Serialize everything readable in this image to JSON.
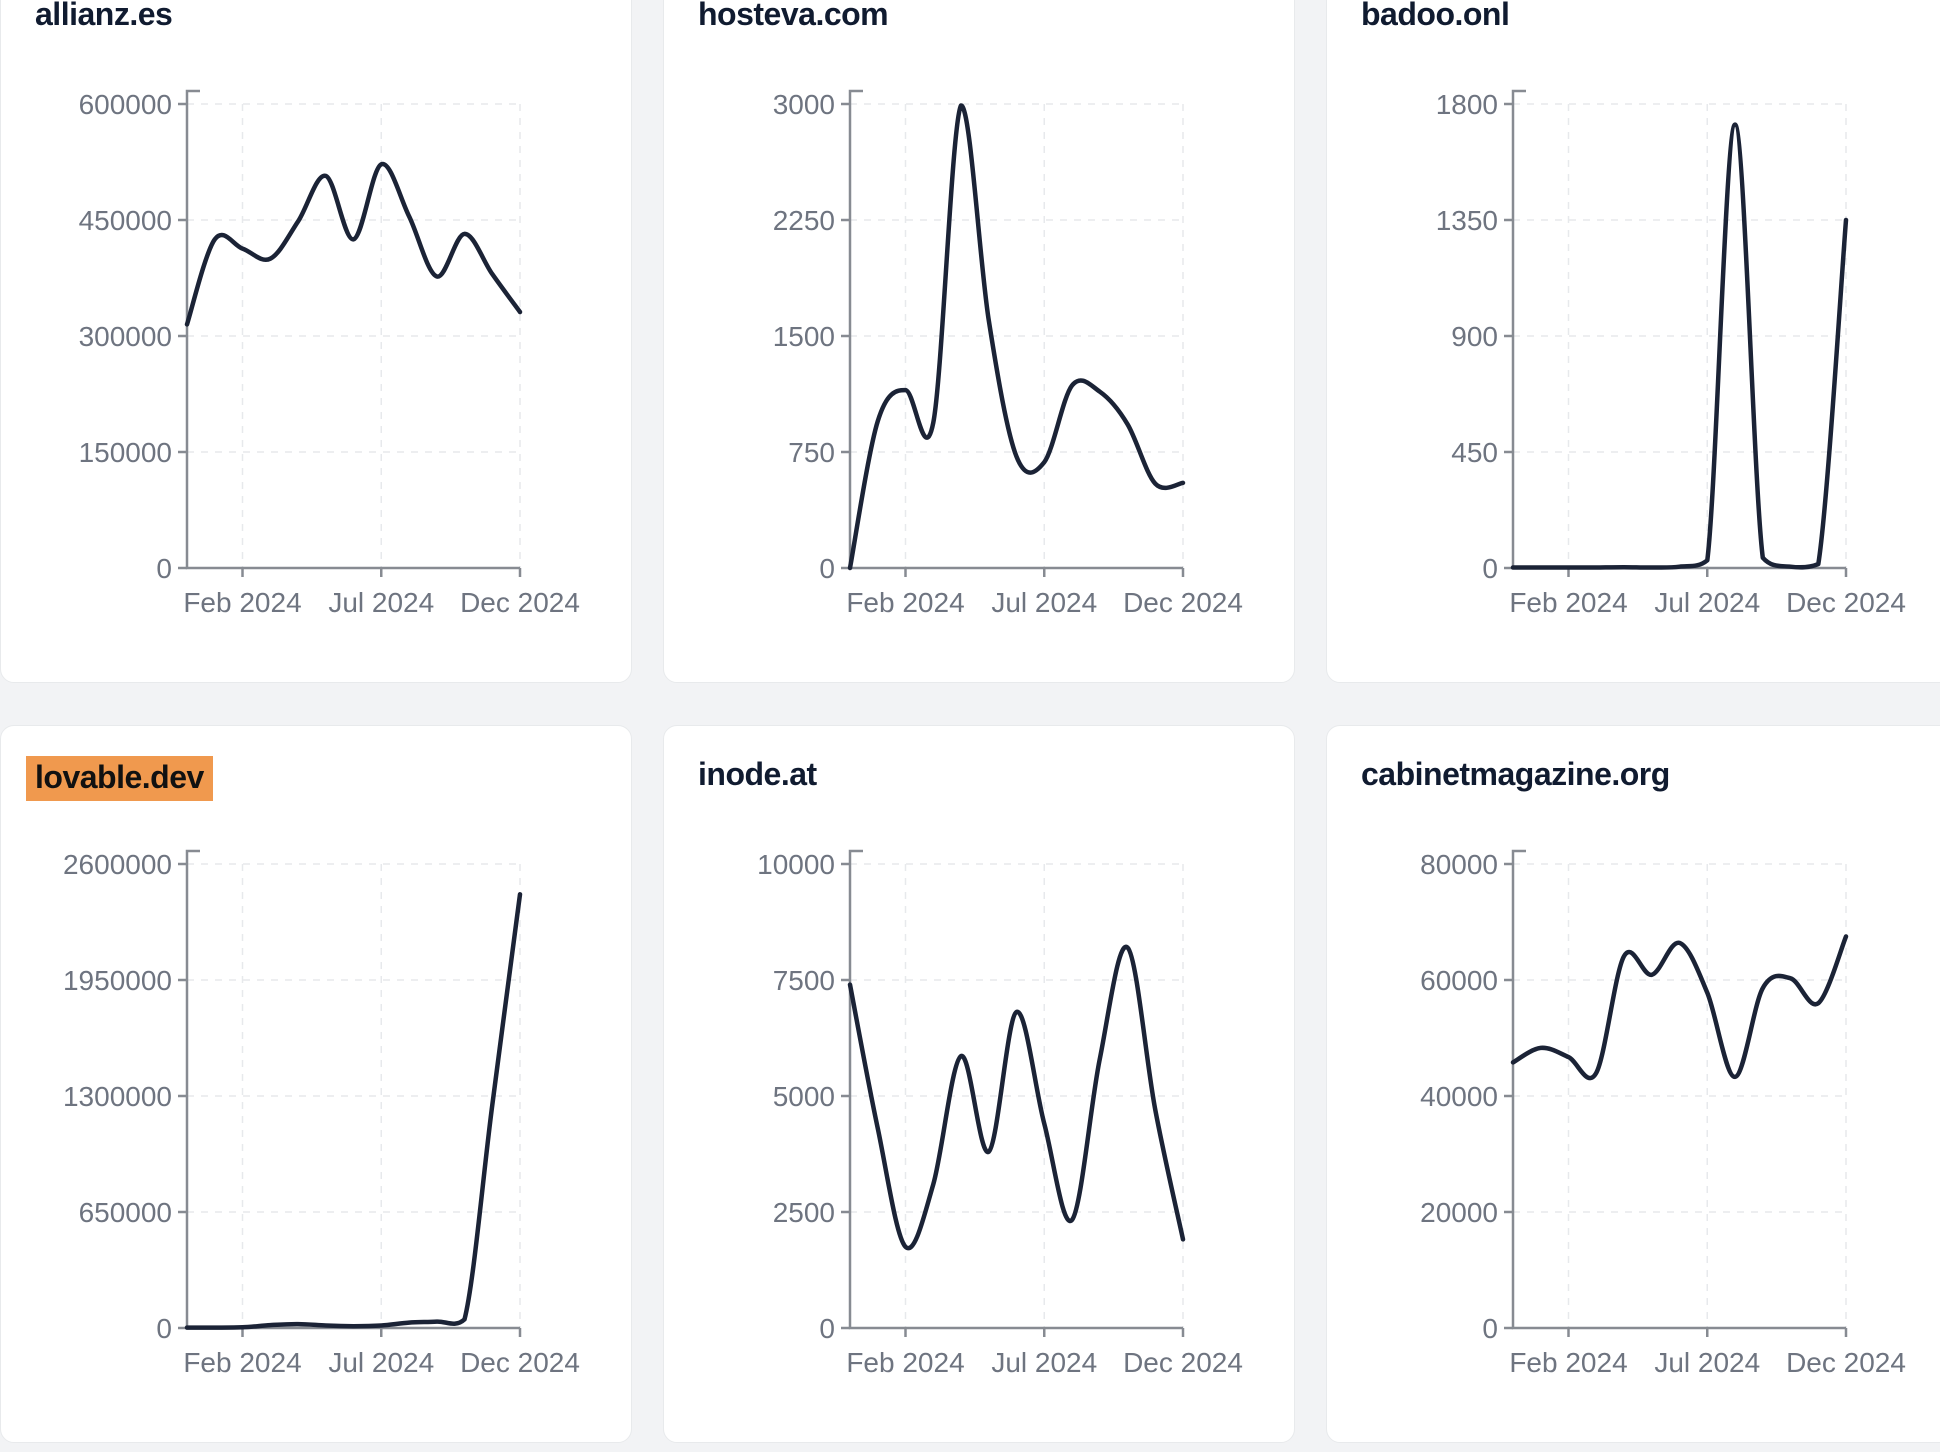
{
  "page": {
    "background": "#f2f3f5",
    "card_background": "#ffffff",
    "card_border": "#e8eaec"
  },
  "style": {
    "line_color": "#1b2336",
    "title_color": "#101b30",
    "tick_label_color": "#6e7480",
    "axis_color": "#878b92",
    "grid_color": "#e7e9ec",
    "highlight_color": "#f0994e",
    "highlight_text_color": "#111111"
  },
  "x_tick_labels": [
    "Feb 2024",
    "Jul 2024",
    "Dec 2024"
  ],
  "chart_data": [
    {
      "type": "line",
      "title": "allianz.es",
      "highlighted": false,
      "x": [
        "Dec 2023",
        "Jan 2024",
        "Feb 2024",
        "Mar 2024",
        "Apr 2024",
        "May 2024",
        "Jun 2024",
        "Jul 2024",
        "Aug 2024",
        "Sep 2024",
        "Oct 2024",
        "Nov 2024",
        "Dec 2024"
      ],
      "values": [
        315000,
        425000,
        413000,
        400000,
        448000,
        507000,
        425000,
        522000,
        455000,
        377000,
        432000,
        380000,
        331000
      ],
      "ylim": [
        0,
        600000
      ],
      "y_ticks": [
        0,
        150000,
        300000,
        450000,
        600000
      ],
      "x_tick_labels": [
        "Feb 2024",
        "Jul 2024",
        "Dec 2024"
      ],
      "grid": true,
      "legend": "none"
    },
    {
      "type": "line",
      "title": "hosteva.com",
      "highlighted": false,
      "x": [
        "Dec 2023",
        "Jan 2024",
        "Feb 2024",
        "Mar 2024",
        "Apr 2024",
        "May 2024",
        "Jun 2024",
        "Jul 2024",
        "Aug 2024",
        "Sep 2024",
        "Oct 2024",
        "Nov 2024",
        "Dec 2024"
      ],
      "values": [
        0,
        950,
        1150,
        940,
        2990,
        1600,
        720,
        685,
        1180,
        1140,
        930,
        545,
        550
      ],
      "ylim": [
        0,
        3000
      ],
      "y_ticks": [
        0,
        750,
        1500,
        2250,
        3000
      ],
      "x_tick_labels": [
        "Feb 2024",
        "Jul 2024",
        "Dec 2024"
      ],
      "grid": true,
      "legend": "none"
    },
    {
      "type": "line",
      "title": "badoo.onl",
      "highlighted": false,
      "x": [
        "Dec 2023",
        "Jan 2024",
        "Feb 2024",
        "Mar 2024",
        "Apr 2024",
        "May 2024",
        "Jun 2024",
        "Jul 2024",
        "Aug 2024",
        "Sep 2024",
        "Oct 2024",
        "Nov 2024",
        "Dec 2024"
      ],
      "values": [
        2,
        2,
        2,
        2,
        3,
        2,
        5,
        30,
        1720,
        40,
        5,
        15,
        1350
      ],
      "ylim": [
        0,
        1800
      ],
      "y_ticks": [
        0,
        450,
        900,
        1350,
        1800
      ],
      "x_tick_labels": [
        "Feb 2024",
        "Jul 2024",
        "Dec 2024"
      ],
      "grid": true,
      "legend": "none"
    },
    {
      "type": "line",
      "title": "lovable.dev",
      "highlighted": true,
      "x": [
        "Dec 2023",
        "Jan 2024",
        "Feb 2024",
        "Mar 2024",
        "Apr 2024",
        "May 2024",
        "Jun 2024",
        "Jul 2024",
        "Aug 2024",
        "Sep 2024",
        "Oct 2024",
        "Nov 2024",
        "Dec 2024"
      ],
      "values": [
        2000,
        2000,
        4000,
        16000,
        22000,
        14000,
        10000,
        14000,
        30000,
        36000,
        48000,
        1250000,
        2430000
      ],
      "ylim": [
        0,
        2600000
      ],
      "y_ticks": [
        0,
        650000,
        1300000,
        1950000,
        2600000
      ],
      "x_tick_labels": [
        "Feb 2024",
        "Jul 2024",
        "Dec 2024"
      ],
      "grid": true,
      "legend": "none"
    },
    {
      "type": "line",
      "title": "inode.at",
      "highlighted": false,
      "x": [
        "Dec 2023",
        "Jan 2024",
        "Feb 2024",
        "Mar 2024",
        "Apr 2024",
        "May 2024",
        "Jun 2024",
        "Jul 2024",
        "Aug 2024",
        "Sep 2024",
        "Oct 2024",
        "Nov 2024",
        "Dec 2024"
      ],
      "values": [
        7400,
        4300,
        1750,
        3100,
        5860,
        3800,
        6810,
        4400,
        2330,
        5800,
        8200,
        4700,
        1910
      ],
      "ylim": [
        0,
        10000
      ],
      "y_ticks": [
        0,
        2500,
        5000,
        7500,
        10000
      ],
      "x_tick_labels": [
        "Feb 2024",
        "Jul 2024",
        "Dec 2024"
      ],
      "grid": true,
      "legend": "none"
    },
    {
      "type": "line",
      "title": "cabinetmagazine.org",
      "highlighted": false,
      "x": [
        "Dec 2023",
        "Jan 2024",
        "Feb 2024",
        "Mar 2024",
        "Apr 2024",
        "May 2024",
        "Jun 2024",
        "Jul 2024",
        "Aug 2024",
        "Sep 2024",
        "Oct 2024",
        "Nov 2024",
        "Dec 2024"
      ],
      "values": [
        45800,
        48300,
        46700,
        44000,
        64100,
        60900,
        66400,
        57800,
        43300,
        58600,
        60300,
        56000,
        67500
      ],
      "ylim": [
        0,
        80000
      ],
      "y_ticks": [
        0,
        20000,
        40000,
        60000,
        80000
      ],
      "x_tick_labels": [
        "Feb 2024",
        "Jul 2024",
        "Dec 2024"
      ],
      "grid": true,
      "legend": "none"
    }
  ]
}
